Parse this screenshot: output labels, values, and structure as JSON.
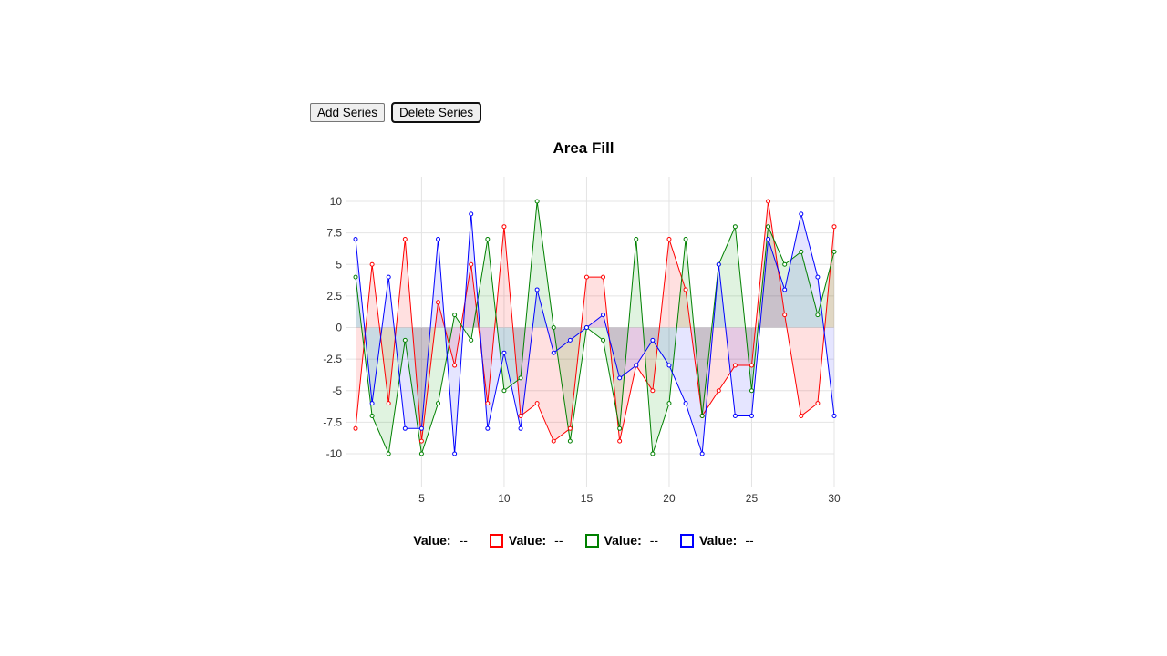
{
  "toolbar": {
    "add_label": "Add Series",
    "delete_label": "Delete Series"
  },
  "chart_data": {
    "type": "area",
    "title": "Area Fill",
    "xlabel": "",
    "ylabel": "",
    "xlim": [
      1,
      30
    ],
    "ylim": [
      -10,
      10
    ],
    "x": [
      1,
      2,
      3,
      4,
      5,
      6,
      7,
      8,
      9,
      10,
      11,
      12,
      13,
      14,
      15,
      16,
      17,
      18,
      19,
      20,
      21,
      22,
      23,
      24,
      25,
      26,
      27,
      28,
      29,
      30
    ],
    "x_ticks": [
      "5",
      "10",
      "15",
      "20",
      "25",
      "30"
    ],
    "y_ticks": [
      "10",
      "7.5",
      "5",
      "2.5",
      "0",
      "-2.5",
      "-5",
      "-7.5",
      "-10"
    ],
    "grid": true,
    "fill_baseline": 0,
    "series": [
      {
        "color": "#ff0000",
        "fill": "rgba(255,0,0,0.12)",
        "values": [
          -8,
          5,
          -6,
          7,
          -9,
          2,
          -3,
          5,
          -6,
          8,
          -7,
          -6,
          -9,
          -8,
          4,
          4,
          -9,
          -3,
          -5,
          7,
          3,
          -7,
          -5,
          -3,
          -3,
          10,
          1,
          -7,
          -6,
          8
        ]
      },
      {
        "color": "#008000",
        "fill": "rgba(0,160,0,0.12)",
        "values": [
          4,
          -7,
          -10,
          -1,
          -10,
          -6,
          1,
          -1,
          7,
          -5,
          -4,
          10,
          0,
          -9,
          0,
          -1,
          -8,
          7,
          -10,
          -6,
          7,
          -7,
          5,
          8,
          -5,
          8,
          5,
          6,
          1,
          6
        ]
      },
      {
        "color": "#0000ff",
        "fill": "rgba(0,0,255,0.10)",
        "values": [
          7,
          -6,
          4,
          -8,
          -8,
          7,
          -10,
          9,
          -8,
          -2,
          -8,
          3,
          -2,
          -1,
          0,
          1,
          -4,
          -3,
          -1,
          -3,
          -6,
          -10,
          5,
          -7,
          -7,
          7,
          3,
          9,
          4,
          -7
        ]
      }
    ]
  },
  "legend": [
    {
      "label": "Value:",
      "value": "--",
      "color": ""
    },
    {
      "label": "Value:",
      "value": "--",
      "color": "#ff0000"
    },
    {
      "label": "Value:",
      "value": "--",
      "color": "#008000"
    },
    {
      "label": "Value:",
      "value": "--",
      "color": "#0000ff"
    }
  ]
}
